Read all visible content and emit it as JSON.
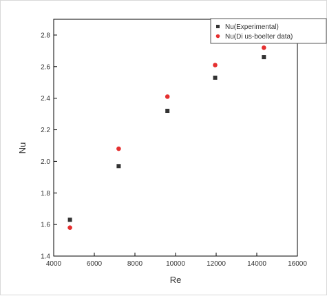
{
  "chart_data": {
    "type": "scatter",
    "title": "",
    "xlabel": "Re",
    "ylabel": "Nu",
    "xlim": [
      4000,
      16000
    ],
    "ylim": [
      1.4,
      2.9
    ],
    "xticks": [
      4000,
      6000,
      8000,
      10000,
      12000,
      14000,
      16000
    ],
    "yticks": [
      1.4,
      1.6,
      1.8,
      2.0,
      2.2,
      2.4,
      2.6,
      2.8
    ],
    "ytick_labels": [
      "1.4",
      "1.6",
      "1.8",
      "2.0",
      "2.2",
      "2.4",
      "2.6",
      "2.8"
    ],
    "legend_position": "top-right",
    "grid": false,
    "series": [
      {
        "name": "Nu(Experimental)",
        "marker": "square",
        "color": "#333333",
        "x": [
          4800,
          7200,
          9600,
          11950,
          14350
        ],
        "y": [
          1.63,
          1.97,
          2.32,
          2.53,
          2.66
        ]
      },
      {
        "name": "Nu(Di us-boelter data)",
        "marker": "circle",
        "color": "#e53030",
        "x": [
          4800,
          7200,
          9600,
          11950,
          14350
        ],
        "y": [
          1.58,
          2.08,
          2.41,
          2.61,
          2.72
        ]
      }
    ]
  }
}
